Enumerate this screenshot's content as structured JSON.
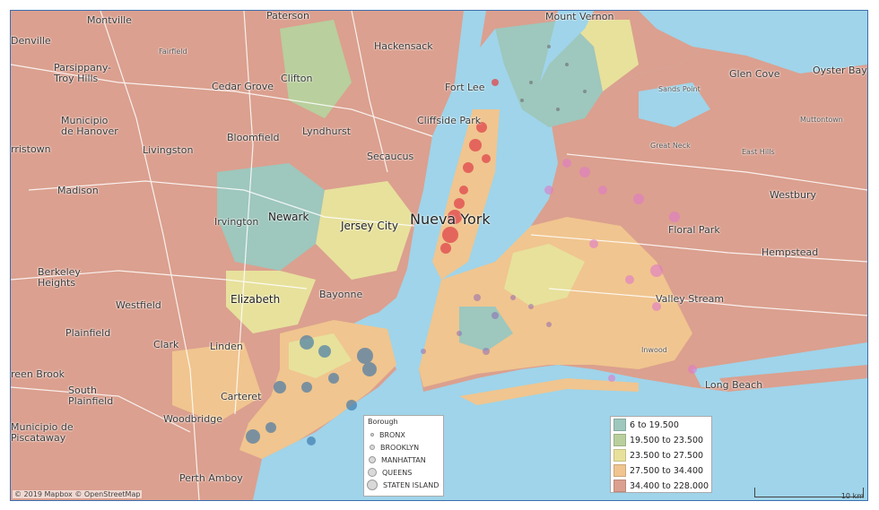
{
  "map": {
    "attribution": "© 2019 Mapbox © OpenStreetMap",
    "scale_label": "10 km",
    "labels": {
      "paterson": "Paterson",
      "montville": "Montville",
      "denville": "Denville",
      "mount_vernon": "Mount Vernon",
      "hackensack": "Hackensack",
      "fairfield": "Fairfield",
      "parsippany": "Parsippany-",
      "troy_hills": "Troy Hills",
      "cedar_grove": "Cedar Grove",
      "clifton": "Clifton",
      "fort_lee": "Fort Lee",
      "glen_cove": "Glen Cove",
      "oyster_bay": "Oyster Bay",
      "sands_point": "Sands Point",
      "muttontown": "Muttontown",
      "municipio_hanover_1": "Municipio",
      "municipio_hanover_2": "de Hanover",
      "cliffside_park": "Cliffside Park",
      "lyndhurst": "Lyndhurst",
      "bloomfield": "Bloomfield",
      "livingston": "Livingston",
      "morristown": "rristown",
      "great_neck": "Great Neck",
      "east_hills": "East Hills",
      "secaucus": "Secaucus",
      "madison": "Madison",
      "westbury": "Westbury",
      "newark": "Newark",
      "irvington": "Irvington",
      "jersey_city": "Jersey City",
      "nueva_york": "Nueva York",
      "floral_park": "Floral Park",
      "hempstead": "Hempstead",
      "berkeley_1": "Berkeley",
      "berkeley_2": "Heights",
      "elizabeth": "Elizabeth",
      "bayonne": "Bayonne",
      "westfield": "Westfield",
      "valley_stream": "Valley Stream",
      "plainfield": "Plainfield",
      "clark": "Clark",
      "linden": "Linden",
      "inwood": "Inwood",
      "green_brook": "reen Brook",
      "south_plainfield_1": "South",
      "south_plainfield_2": "Plainfield",
      "carteret": "Carteret",
      "long_beach": "Long Beach",
      "woodbridge": "Woodbridge",
      "piscataway_1": "Municipio de",
      "piscataway_2": "Piscataway",
      "perth_amboy": "Perth Amboy"
    }
  },
  "borough_legend": {
    "title": "Borough",
    "items": [
      "BRONX",
      "BROOKLYN",
      "MANHATTAN",
      "QUEENS",
      "STATEN ISLAND"
    ]
  },
  "income_legend": {
    "items": [
      {
        "label": "6 to 19.500",
        "color": "#9ec7bd"
      },
      {
        "label": "19.500 to 23.500",
        "color": "#b9cf9d"
      },
      {
        "label": "23.500 to 27.500",
        "color": "#e7e19c"
      },
      {
        "label": "27.500 to 34.400",
        "color": "#f0c58f"
      },
      {
        "label": "34.400 to 228.000",
        "color": "#dba08f"
      }
    ]
  },
  "colors": {
    "water": "#9fd4ea",
    "manhattan_points": "#e0454b",
    "queens_points": "#e07ac9",
    "brooklyn_points": "#8a63b5",
    "staten_points": "#2f6ea8",
    "bronx_points": "#6b6b6b"
  }
}
